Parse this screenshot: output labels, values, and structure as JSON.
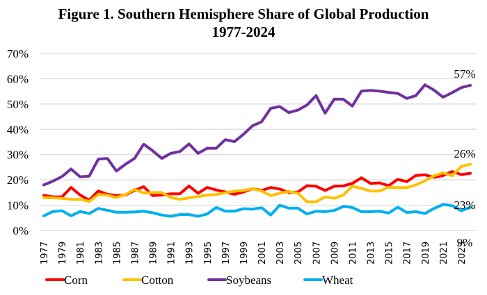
{
  "chart_data": {
    "type": "line",
    "title": "Figure 1. Southern Hemisphere Share of Global Production",
    "subtitle": "1977-2024",
    "xlabel": "",
    "ylabel": "",
    "ylim": [
      0,
      70
    ],
    "y_ticks": [
      0,
      10,
      20,
      30,
      40,
      50,
      60,
      70
    ],
    "y_tick_labels": [
      "0%",
      "10%",
      "20%",
      "30%",
      "40%",
      "50%",
      "60%",
      "70%"
    ],
    "x": [
      1977,
      1978,
      1979,
      1980,
      1981,
      1982,
      1983,
      1984,
      1985,
      1986,
      1987,
      1988,
      1989,
      1990,
      1991,
      1992,
      1993,
      1994,
      1995,
      1996,
      1997,
      1998,
      1999,
      2000,
      2001,
      2002,
      2003,
      2004,
      2005,
      2006,
      2007,
      2008,
      2009,
      2010,
      2011,
      2012,
      2013,
      2014,
      2015,
      2016,
      2017,
      2018,
      2019,
      2020,
      2021,
      2022,
      2023,
      2024
    ],
    "x_tick_labels": [
      "1977",
      "1979",
      "1981",
      "1983",
      "1985",
      "1987",
      "1989",
      "1991",
      "1993",
      "1995",
      "1997",
      "1999",
      "2001",
      "2003",
      "2005",
      "2007",
      "2009",
      "2011",
      "2013",
      "2015",
      "2017",
      "2019",
      "2021",
      "2023"
    ],
    "grid": true,
    "legend_position": "bottom",
    "series": [
      {
        "name": "Corn",
        "color": "#FF0000",
        "values": [
          13.9,
          13.3,
          13.3,
          17.0,
          14.0,
          12.0,
          15.6,
          14.3,
          13.8,
          14.0,
          15.9,
          17.3,
          13.8,
          14.0,
          14.5,
          14.5,
          17.6,
          14.7,
          17.0,
          16.0,
          15.2,
          14.3,
          15.2,
          16.5,
          15.8,
          17.0,
          16.4,
          15.0,
          15.2,
          17.7,
          17.5,
          15.8,
          17.5,
          17.6,
          18.6,
          20.8,
          18.6,
          18.8,
          17.7,
          20.2,
          19.3,
          21.7,
          22.0,
          21.0,
          21.7,
          23.3,
          22.1,
          22.6
        ],
        "end_label": "23%"
      },
      {
        "name": "Cotton",
        "color": "#FFC000",
        "values": [
          13.0,
          12.9,
          12.7,
          12.3,
          12.3,
          11.5,
          14.2,
          14.0,
          13.0,
          14.2,
          16.3,
          14.8,
          15.0,
          15.0,
          13.0,
          12.3,
          12.9,
          13.4,
          14.0,
          14.2,
          14.9,
          15.5,
          15.8,
          16.5,
          15.6,
          13.8,
          14.7,
          15.4,
          14.7,
          11.3,
          11.3,
          13.3,
          12.7,
          14.0,
          17.5,
          16.6,
          15.6,
          15.6,
          17.1,
          16.9,
          16.9,
          18.0,
          19.6,
          21.6,
          22.8,
          21.6,
          25.3,
          26.2
        ],
        "end_label": "26%"
      },
      {
        "name": "Soybeans",
        "color": "#7030A0",
        "values": [
          18.0,
          19.5,
          21.3,
          24.3,
          21.2,
          21.5,
          28.2,
          28.5,
          23.5,
          26.2,
          28.5,
          34.1,
          31.5,
          28.5,
          30.5,
          31.2,
          34.2,
          30.5,
          32.5,
          32.5,
          35.9,
          35.1,
          38.0,
          41.4,
          43.0,
          48.3,
          49.0,
          46.6,
          47.6,
          49.6,
          53.3,
          46.4,
          51.9,
          51.9,
          49.2,
          55.1,
          55.4,
          55.1,
          54.6,
          54.2,
          52.2,
          53.3,
          57.6,
          55.5,
          52.7,
          54.5,
          56.5,
          57.4
        ],
        "end_label": "57%"
      },
      {
        "name": "Wheat",
        "color": "#00B0F0",
        "values": [
          5.8,
          7.5,
          7.8,
          5.8,
          7.5,
          6.7,
          8.7,
          8.0,
          7.2,
          7.2,
          7.3,
          7.6,
          7.0,
          6.1,
          5.6,
          6.3,
          6.3,
          5.6,
          6.5,
          9.1,
          7.6,
          7.6,
          8.6,
          8.4,
          9.0,
          6.1,
          10.0,
          8.8,
          8.8,
          6.5,
          7.6,
          7.4,
          7.9,
          9.5,
          9.1,
          7.4,
          7.4,
          7.6,
          6.9,
          9.2,
          7.1,
          7.4,
          6.7,
          8.7,
          10.3,
          9.8,
          7.8,
          9.1
        ],
        "end_label": "9%"
      }
    ]
  }
}
